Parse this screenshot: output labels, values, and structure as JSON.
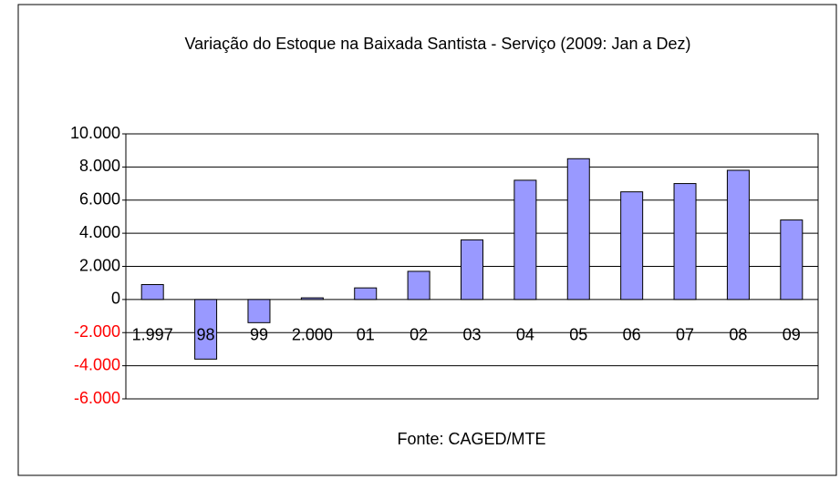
{
  "chart_data": {
    "type": "bar",
    "title": "Variação do Estoque na Baixada Santista - Serviço (2009:  Jan a Dez)",
    "source": "Fonte: CAGED/MTE",
    "categories": [
      "1.997",
      "98",
      "99",
      "2.000",
      "01",
      "02",
      "03",
      "04",
      "05",
      "06",
      "07",
      "08",
      "09"
    ],
    "values": [
      900,
      -3600,
      -1400,
      100,
      700,
      1700,
      3600,
      7200,
      8500,
      6500,
      7000,
      7800,
      4800
    ],
    "color": "#9999ff",
    "negative_tick_color": "#ff0000",
    "ylim": [
      -6000,
      10000
    ],
    "yticks": [
      {
        "value": -6000,
        "label": "-6.000"
      },
      {
        "value": -4000,
        "label": "-4.000"
      },
      {
        "value": -2000,
        "label": "-2.000"
      },
      0,
      {
        "value": 2000,
        "label": "2.000"
      },
      {
        "value": 4000,
        "label": "4.000"
      },
      {
        "value": 6000,
        "label": "6.000"
      },
      {
        "value": 8000,
        "label": "8.000"
      },
      {
        "value": 10000,
        "label": "10.000"
      }
    ],
    "grid": true
  }
}
